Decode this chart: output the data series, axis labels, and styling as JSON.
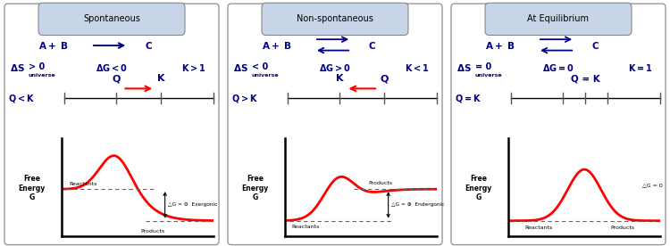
{
  "panels": [
    {
      "title": "Spontaneous",
      "reaction_arrow": "right",
      "s_val": "> 0",
      "delta_g": "△G < 0",
      "k_val": "K > 1",
      "qk_left": "Q < K",
      "qk_label_a": "Q",
      "qk_label_b": "K",
      "qk_arrow_dir": "right",
      "graph_type": "exergonic",
      "reactants_label": "Reactants",
      "products_label": "Products",
      "delta_g_label": "△G = ⊖  Exergonic"
    },
    {
      "title": "Non-spontaneous",
      "reaction_arrow": "both",
      "s_val": "< 0",
      "delta_g": "△G > 0",
      "k_val": "K < 1",
      "qk_left": "Q > K",
      "qk_label_a": "K",
      "qk_label_b": "Q",
      "qk_arrow_dir": "left",
      "graph_type": "endergonic",
      "reactants_label": "Reactants",
      "products_label": "Products",
      "delta_g_label": "△G = ⊕  Endergonic"
    },
    {
      "title": "At Equilibrium",
      "reaction_arrow": "both",
      "s_val": "= 0",
      "delta_g": "△G = 0",
      "k_val": "K = 1",
      "qk_left": "Q = K",
      "qk_label_center": "Q = K",
      "qk_arrow_dir": "none",
      "graph_type": "equilibrium",
      "reactants_label": "Reactants",
      "products_label": "Products",
      "delta_g_label": "△G = 0"
    }
  ],
  "bg_color": "#ffffff",
  "border_color": "#999999",
  "title_box_color": "#c8d4e8",
  "title_box_edge": "#888888",
  "text_color": "#000080",
  "curve_color": "#ff0000",
  "arrow_color": "#ff0000",
  "dashed_color": "#666666",
  "axis_color": "#000000"
}
